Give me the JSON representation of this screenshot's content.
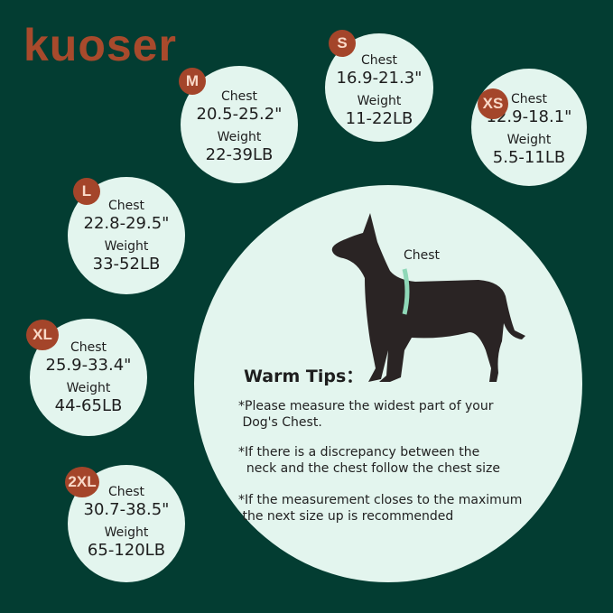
{
  "brand": {
    "logo": "kuoser",
    "color": "#a84a2c"
  },
  "colors": {
    "background": "#033d32",
    "circle": "#e3f5ee",
    "badge": "#a4452a"
  },
  "sizes": [
    {
      "size": "S",
      "chest_label": "Chest",
      "chest": "16.9-21.3\"",
      "weight_label": "Weight",
      "weight": "11-22LB"
    },
    {
      "size": "M",
      "chest_label": "Chest",
      "chest": "20.5-25.2\"",
      "weight_label": "Weight",
      "weight": "22-39LB"
    },
    {
      "size": "XS",
      "chest_label": "Chest",
      "chest": "12.9-18.1\"",
      "weight_label": "Weight",
      "weight": "5.5-11LB"
    },
    {
      "size": "L",
      "chest_label": "Chest",
      "chest": "22.8-29.5\"",
      "weight_label": "Weight",
      "weight": "33-52LB"
    },
    {
      "size": "XL",
      "chest_label": "Chest",
      "chest": "25.9-33.4\"",
      "weight_label": "Weight",
      "weight": "44-65LB"
    },
    {
      "size": "2XL",
      "chest_label": "Chest",
      "chest": "30.7-38.5\"",
      "weight_label": "Weight",
      "weight": "65-120LB"
    }
  ],
  "diagram": {
    "chest_label": "Chest",
    "icon": "dog-silhouette-icon"
  },
  "tips": {
    "title": "Warm Tips：",
    "items": [
      "*Please measure the widest part of your\n Dog's Chest.",
      "*If there is a discrepancy between the\n  neck and the chest follow the chest size",
      "*If the measurement closes to the maximum\n the next size up is recommended"
    ]
  }
}
